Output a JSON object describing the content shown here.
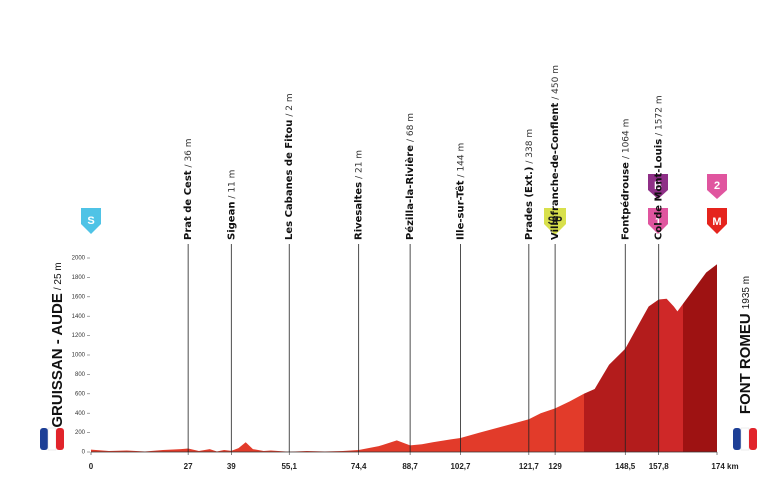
{
  "chart_data": {
    "type": "area",
    "start": {
      "name": "GRUISSAN - AUDE",
      "altitude": "/ 25 m"
    },
    "finish": {
      "name": "FONT ROMEU",
      "altitude": "1935 m"
    },
    "waypoints": [
      {
        "name": "Prat de Cest",
        "altitude": "/ 36 m"
      },
      {
        "name": "Sigean",
        "altitude": "/ 11 m"
      },
      {
        "name": "Les Cabanes de Fitou",
        "altitude": "/ 2 m"
      },
      {
        "name": "Rivesaltes",
        "altitude": "/ 21 m"
      },
      {
        "name": "Pézilla-la-Rivière",
        "altitude": "/ 68 m"
      },
      {
        "name": "Ille-sur-Têt",
        "altitude": "/ 144 m"
      },
      {
        "name": "Prades (Ext.)",
        "altitude": "/ 338 m"
      },
      {
        "name": "Villefranche-de-Conflent",
        "altitude": "/ 450 m"
      },
      {
        "name": "Fontpédrouse",
        "altitude": "/ 1064 m"
      },
      {
        "name": "Col de Mont-Louis",
        "altitude": "/ 1572 m"
      }
    ],
    "badges": [
      "S",
      "SP",
      "B",
      "1",
      "2",
      "M"
    ],
    "xlim": [
      0,
      174
    ],
    "xticks": [
      0,
      27,
      39,
      {
        "value": 55.1,
        "label": "55,1"
      },
      {
        "value": 74.4,
        "label": "74,4"
      },
      {
        "value": 88.7,
        "label": "88,7"
      },
      {
        "value": 102.7,
        "label": "102,7"
      },
      {
        "value": 121.7,
        "label": "121,7"
      },
      129,
      {
        "value": 148.5,
        "label": "148,5"
      },
      {
        "value": 157.8,
        "label": "157,8"
      },
      {
        "value": 174,
        "label": "174 km"
      }
    ],
    "ylim": [
      0,
      2000
    ],
    "yticks": [
      0,
      200,
      400,
      600,
      800,
      1000,
      1200,
      1400,
      1600,
      1800,
      2000
    ],
    "sections": [
      {
        "start": 0,
        "color": "#e23b2a"
      },
      {
        "start": 137,
        "color": "#b31c1c"
      },
      {
        "start": 157.8,
        "color": "#cf2828"
      },
      {
        "start": 164.5,
        "color": "#9e1212"
      }
    ],
    "series": [
      {
        "name": "Elevation",
        "x": [
          0,
          5,
          10,
          15,
          20,
          25,
          27,
          30,
          33,
          35,
          37,
          39,
          41,
          43,
          45,
          48,
          50,
          55.1,
          60,
          65,
          70,
          74.4,
          80,
          85,
          88.7,
          92,
          95,
          100,
          102.7,
          108,
          112,
          116,
          121.7,
          125,
          129,
          133,
          137,
          140,
          144,
          148.5,
          152,
          155,
          157.8,
          160,
          162,
          163,
          165,
          168,
          171,
          174
        ],
        "values": [
          25,
          10,
          15,
          5,
          20,
          30,
          36,
          10,
          30,
          5,
          20,
          11,
          40,
          100,
          30,
          10,
          15,
          2,
          10,
          5,
          10,
          21,
          60,
          120,
          68,
          80,
          100,
          130,
          144,
          200,
          240,
          280,
          338,
          400,
          450,
          520,
          600,
          650,
          900,
          1064,
          1300,
          1500,
          1572,
          1580,
          1500,
          1450,
          1550,
          1700,
          1850,
          1935
        ]
      }
    ]
  }
}
